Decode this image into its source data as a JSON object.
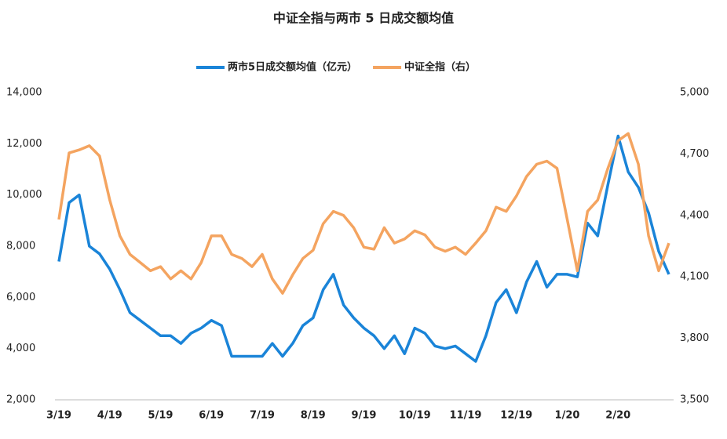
{
  "chart_data": {
    "type": "line",
    "title": "中证全指与两市 5 日成交额均值",
    "categories": [
      "3/19",
      null,
      null,
      null,
      null,
      "4/19",
      null,
      null,
      null,
      null,
      "5/19",
      null,
      null,
      null,
      null,
      "6/19",
      null,
      null,
      null,
      null,
      "7/19",
      null,
      null,
      null,
      null,
      "8/19",
      null,
      null,
      null,
      null,
      "9/19",
      null,
      null,
      null,
      null,
      "10/19",
      null,
      null,
      null,
      null,
      "11/19",
      null,
      null,
      null,
      null,
      "12/19",
      null,
      null,
      null,
      null,
      "1/20",
      null,
      null,
      null,
      null,
      "2/20",
      null,
      null,
      null,
      null,
      null
    ],
    "series": [
      {
        "name": "两市5日成交额均值（亿元）",
        "color": "#1a84d8",
        "values": [
          7400,
          9700,
          10000,
          8000,
          7700,
          7100,
          6300,
          5400,
          5100,
          4800,
          4500,
          4500,
          4200,
          4600,
          4800,
          5100,
          4900,
          3700,
          3700,
          3700,
          3700,
          4200,
          3700,
          4200,
          4900,
          5200,
          6300,
          6900,
          5700,
          5200,
          4800,
          4500,
          4000,
          4500,
          3800,
          4800,
          4600,
          4100,
          4000,
          4100,
          3800,
          3500,
          4500,
          5800,
          6300,
          5400,
          6600,
          7400,
          6400,
          6900,
          6900,
          6800,
          8900,
          8400,
          10400,
          12300,
          10900,
          10300,
          9300,
          7800,
          6900
        ]
      },
      {
        "name": "中证全指（右）",
        "color": "#f4a460",
        "axis": "y2",
        "values": [
          4380,
          4705,
          4720,
          4740,
          4690,
          4475,
          4300,
          4210,
          4170,
          4130,
          4150,
          4090,
          4130,
          4090,
          4170,
          4300,
          4300,
          4210,
          4190,
          4150,
          4210,
          4090,
          4020,
          4110,
          4190,
          4230,
          4360,
          4420,
          4400,
          4340,
          4245,
          4235,
          4340,
          4265,
          4285,
          4325,
          4305,
          4245,
          4225,
          4245,
          4210,
          4265,
          4325,
          4440,
          4420,
          4495,
          4590,
          4650,
          4665,
          4630,
          4380,
          4130,
          4420,
          4475,
          4630,
          4765,
          4800,
          4650,
          4300,
          4130,
          4265
        ]
      }
    ],
    "ylim": [
      2000,
      14000
    ],
    "yticks": [
      {
        "value": 2000,
        "label": "2,000"
      },
      {
        "value": 4000,
        "label": "4,000"
      },
      {
        "value": 6000,
        "label": "6,000"
      },
      {
        "value": 8000,
        "label": "8,000"
      },
      {
        "value": 10000,
        "label": "10,000"
      },
      {
        "value": 12000,
        "label": "12,000"
      },
      {
        "value": 14000,
        "label": "14,000"
      }
    ],
    "y2lim": [
      3500,
      5000
    ],
    "y2ticks": [
      {
        "value": 3500,
        "label": "3,500"
      },
      {
        "value": 3800,
        "label": "3,800"
      },
      {
        "value": 4100,
        "label": "4,100"
      },
      {
        "value": 4400,
        "label": "4,400"
      },
      {
        "value": 4700,
        "label": "4,700"
      },
      {
        "value": 5000,
        "label": "5,000"
      }
    ],
    "legend": "top"
  }
}
